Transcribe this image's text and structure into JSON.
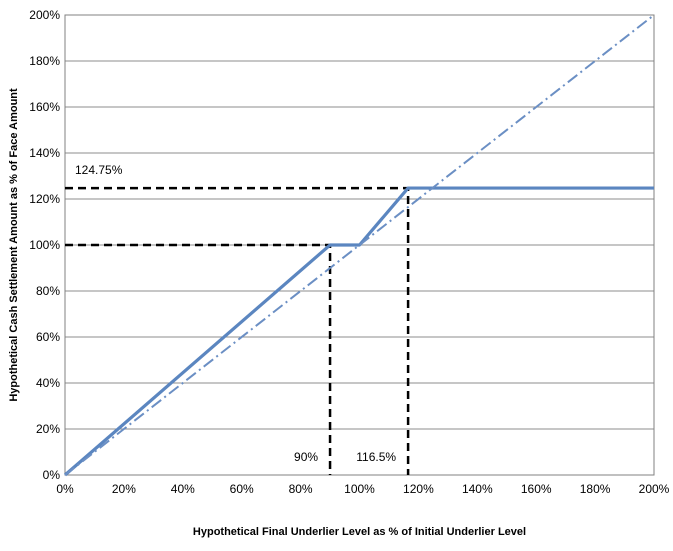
{
  "chart_data": {
    "type": "line",
    "title": "",
    "xlabel": "Hypothetical Final Underlier Level as % of Initial Underlier Level",
    "ylabel": "Hypothetical Cash Settlement Amount as % of Face Amount",
    "xlim": [
      0,
      200
    ],
    "ylim": [
      0,
      200
    ],
    "x_ticks": [
      "0%",
      "20%",
      "40%",
      "60%",
      "80%",
      "100%",
      "120%",
      "140%",
      "160%",
      "180%",
      "200%"
    ],
    "y_ticks": [
      "0%",
      "20%",
      "40%",
      "60%",
      "80%",
      "100%",
      "120%",
      "140%",
      "160%",
      "180%",
      "200%"
    ],
    "grid": "horizontal",
    "legend": "none",
    "series": [
      {
        "style": "solid",
        "color": "#5b86c0",
        "points": [
          [
            0,
            0
          ],
          [
            90,
            100
          ],
          [
            100,
            100
          ],
          [
            116.5,
            124.75
          ],
          [
            200,
            124.75
          ]
        ]
      },
      {
        "style": "dash-dot",
        "color": "#6b8fc4",
        "points": [
          [
            0,
            0
          ],
          [
            200,
            200
          ]
        ]
      }
    ],
    "reference_lines": [
      {
        "points": [
          [
            0,
            100
          ],
          [
            90,
            100
          ],
          [
            90,
            0
          ]
        ]
      },
      {
        "points": [
          [
            0,
            124.75
          ],
          [
            116.5,
            124.75
          ],
          [
            116.5,
            0
          ]
        ]
      }
    ],
    "annotations": [
      {
        "text": "124.75%",
        "x": 0,
        "y": 124.75
      },
      {
        "text": "90%",
        "x": 90,
        "y": 0
      },
      {
        "text": "116.5%",
        "x": 116.5,
        "y": 0
      }
    ]
  }
}
